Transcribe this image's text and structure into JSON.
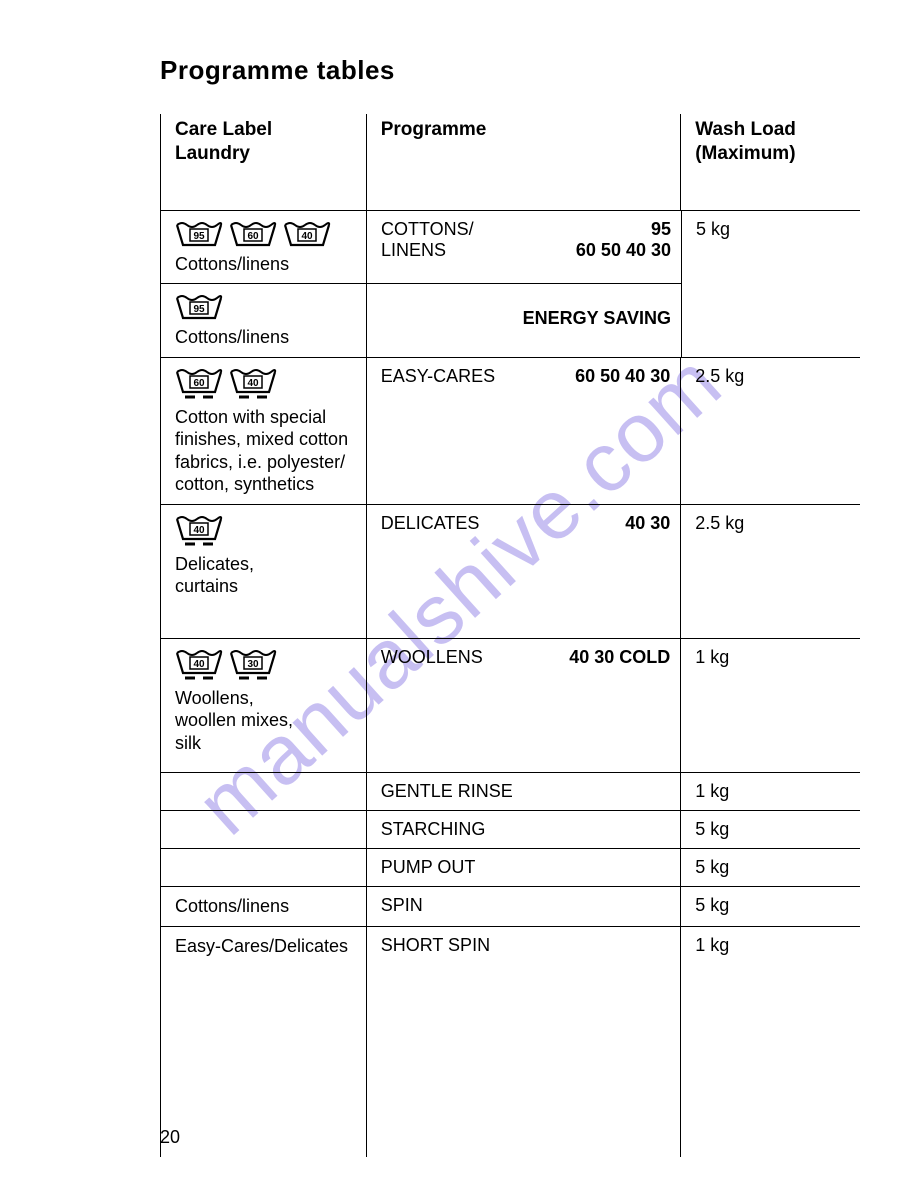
{
  "title": "Programme tables",
  "page_number": "20",
  "watermark": "manualshive.com",
  "header": {
    "care_label_line1": "Care Label",
    "care_label_line2": "Laundry",
    "programme": "Programme",
    "wash_load_line1": "Wash Load",
    "wash_load_line2": "(Maximum)"
  },
  "rows": [
    {
      "care_icons": [
        "95",
        "60",
        "40"
      ],
      "care_icon_underline": [
        false,
        false,
        false
      ],
      "care_text": "Cottons/linens",
      "programme_name": "COTTONS/\nLINENS",
      "programme_temps_line1": "95",
      "programme_temps_line2": "60 50 40 30",
      "load": "5 kg"
    },
    {
      "care_icons": [
        "95"
      ],
      "care_icon_underline": [
        false
      ],
      "care_text": "Cottons/linens",
      "programme_name": "",
      "programme_temps_line1": "",
      "programme_temps_line2": "ENERGY SAVING",
      "load": ""
    },
    {
      "care_icons": [
        "60",
        "40"
      ],
      "care_icon_underline": [
        true,
        true
      ],
      "care_text": "Cotton with special finishes, mixed cotton fabrics, i.e. polyester/\ncotton, synthetics",
      "programme_name": "EASY-CARES",
      "programme_temps_line1": "",
      "programme_temps_line2": "60 50 40 30",
      "load": "2.5 kg"
    },
    {
      "care_icons": [
        "40"
      ],
      "care_icon_underline": [
        true
      ],
      "care_text": "Delicates,\ncurtains",
      "programme_name": "DELICATES",
      "programme_temps_line1": "",
      "programme_temps_line2": "40 30",
      "load": "2.5 kg"
    },
    {
      "care_icons": [
        "40",
        "30"
      ],
      "care_icon_underline": [
        true,
        true
      ],
      "care_text": "Woollens,\nwoollen mixes,\nsilk",
      "programme_name": "WOOLLENS",
      "programme_temps_line1": "",
      "programme_temps_line2": "40 30 COLD",
      "load": "1 kg"
    },
    {
      "care_icons": [],
      "care_text": "",
      "programme_name": "GENTLE RINSE",
      "programme_temps_line1": "",
      "programme_temps_line2": "",
      "load": "1 kg"
    },
    {
      "care_icons": [],
      "care_text": "",
      "programme_name": "STARCHING",
      "programme_temps_line1": "",
      "programme_temps_line2": "",
      "load": "5 kg"
    },
    {
      "care_icons": [],
      "care_text": "",
      "programme_name": "PUMP OUT",
      "programme_temps_line1": "",
      "programme_temps_line2": "",
      "load": "5 kg"
    },
    {
      "care_icons": [],
      "care_text": "Cottons/linens",
      "programme_name": "SPIN",
      "programme_temps_line1": "",
      "programme_temps_line2": "",
      "load": "5 kg"
    },
    {
      "care_icons": [],
      "care_text": "Easy-Cares/Delicates",
      "programme_name": "SHORT SPIN",
      "programme_temps_line1": "",
      "programme_temps_line2": "",
      "load": "1 kg"
    }
  ],
  "colors": {
    "text": "#000000",
    "border": "#000000",
    "background": "#ffffff",
    "watermark": "#9a8ce8"
  }
}
